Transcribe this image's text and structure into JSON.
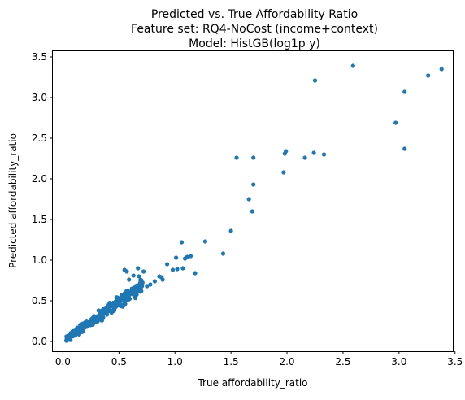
{
  "chart_data": {
    "type": "scatter",
    "title_lines": [
      "Predicted vs. True Affordability Ratio",
      "Feature set: RQ4-NoCost (income+context)",
      "Model: HistGB(log1p y)"
    ],
    "xlabel": "True affordability_ratio",
    "ylabel": "Predicted affordability_ratio",
    "xlim": [
      -0.09,
      3.48
    ],
    "ylim": [
      -0.12,
      3.57
    ],
    "x_ticks": [
      0.0,
      0.5,
      1.0,
      1.5,
      2.0,
      2.5,
      3.0,
      3.5
    ],
    "x_tick_labels": [
      "0.0",
      "0.5",
      "1.0",
      "1.5",
      "2.0",
      "2.5",
      "3.0",
      "3.5"
    ],
    "y_ticks": [
      0.0,
      0.5,
      1.0,
      1.5,
      2.0,
      2.5,
      3.0,
      3.5
    ],
    "y_tick_labels": [
      "0.0",
      "0.5",
      "1.0",
      "1.5",
      "2.0",
      "2.5",
      "3.0",
      "3.5"
    ],
    "grid": false,
    "marker_color": "#1f77b4",
    "outlier_points": [
      [
        2.59,
        3.39
      ],
      [
        2.25,
        3.21
      ],
      [
        3.38,
        3.35
      ],
      [
        3.26,
        3.27
      ],
      [
        3.05,
        3.07
      ],
      [
        2.97,
        2.69
      ],
      [
        3.05,
        2.37
      ],
      [
        1.99,
        2.34
      ],
      [
        1.98,
        2.31
      ],
      [
        2.24,
        2.32
      ],
      [
        2.33,
        2.3
      ],
      [
        2.16,
        2.26
      ],
      [
        1.55,
        2.26
      ],
      [
        1.7,
        2.26
      ],
      [
        1.97,
        2.08
      ],
      [
        1.7,
        1.93
      ],
      [
        1.66,
        1.75
      ],
      [
        1.69,
        1.6
      ],
      [
        1.5,
        1.36
      ],
      [
        1.43,
        1.08
      ],
      [
        1.27,
        1.23
      ],
      [
        1.06,
        1.22
      ],
      [
        1.01,
        1.03
      ],
      [
        1.11,
        1.04
      ],
      [
        1.09,
        1.02
      ],
      [
        1.14,
        1.05
      ],
      [
        1.07,
        0.9
      ],
      [
        1.02,
        0.89
      ],
      [
        1.18,
        0.84
      ],
      [
        0.93,
        0.95
      ],
      [
        0.98,
        0.88
      ],
      [
        0.86,
        0.8
      ],
      [
        0.89,
        0.76
      ],
      [
        0.67,
        0.9
      ],
      [
        0.57,
        0.86
      ],
      [
        0.55,
        0.88
      ],
      [
        0.72,
        0.86
      ],
      [
        0.68,
        0.8
      ],
      [
        0.63,
        0.81
      ],
      [
        0.59,
        0.76
      ],
      [
        0.7,
        0.71
      ],
      [
        0.75,
        0.68
      ],
      [
        0.78,
        0.7
      ],
      [
        0.82,
        0.74
      ],
      [
        0.88,
        0.79
      ]
    ],
    "cluster": {
      "n": 360,
      "x_range": [
        0.03,
        0.72
      ],
      "slope": 0.97,
      "intercept": 0.0,
      "spread": 0.045
    }
  }
}
